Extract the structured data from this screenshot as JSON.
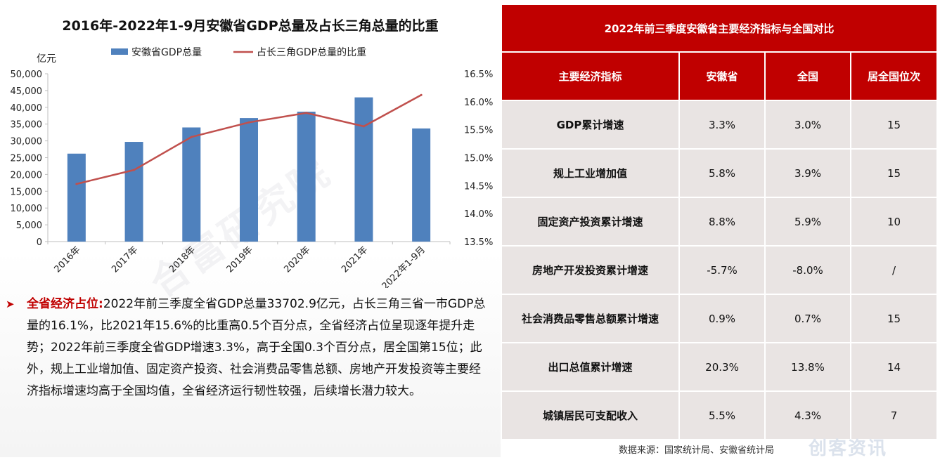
{
  "chart": {
    "title": "2016年-2022年1-9月安徽省GDP总量及占长三角总量的比重",
    "unit_label": "亿元",
    "legend_bar": "安徽省GDP总量",
    "legend_line": "占长三角GDP总量的比重"
  },
  "chart_data": {
    "type": "bar",
    "categories": [
      "2016年",
      "2017年",
      "2018年",
      "2019年",
      "2020年",
      "2021年",
      "2022年1-9月"
    ],
    "series": [
      {
        "name": "安徽省GDP总量",
        "type": "bar",
        "axis": "left",
        "values": [
          26200,
          29700,
          34000,
          36800,
          38700,
          42960,
          33702.9
        ]
      },
      {
        "name": "占长三角GDP总量的比重",
        "type": "line",
        "axis": "right",
        "values": [
          14.53,
          14.78,
          15.37,
          15.63,
          15.8,
          15.56,
          16.12
        ]
      }
    ],
    "ylabel": "亿元",
    "ylim": [
      0,
      50000
    ],
    "yticks": [
      "0",
      "5,000",
      "10,000",
      "15,000",
      "20,000",
      "25,000",
      "30,000",
      "35,000",
      "40,000",
      "45,000",
      "50,000"
    ],
    "y2lim": [
      13.5,
      16.5
    ],
    "y2ticks": [
      "13.5%",
      "14.0%",
      "14.5%",
      "15.0%",
      "15.5%",
      "16.0%",
      "16.5%"
    ],
    "legend_position": "top",
    "colors": {
      "bar": "#4f81bd",
      "line": "#c0504d"
    }
  },
  "bullet": {
    "heading": "全省经济占位:",
    "text": "2022年前三季度全省GDP总量33702.9亿元，占长三角三省一市GDP总量的16.1%，比2021年15.6%的比重高0.5个百分点，全省经济占位呈现逐年提升走势；2022年前三季度全省GDP增速3.3%，高于全国0.3个百分点，居全国第15位；此外，规上工业增加值、固定资产投资、社会消费品零售总额、房地产开发投资等主要经济指标增速均高于全国均值，全省经济运行韧性较强，后续增长潜力较大。"
  },
  "table": {
    "title": "2022年前三季度安徽省主要经济指标与全国对比",
    "headers": [
      "主要经济指标",
      "安徽省",
      "全国",
      "居全国位次"
    ],
    "rows": [
      [
        "GDP累计增速",
        "3.3%",
        "3.0%",
        "15"
      ],
      [
        "规上工业增加值",
        "5.8%",
        "3.9%",
        "15"
      ],
      [
        "固定资产投资累计增速",
        "8.8%",
        "5.9%",
        "10"
      ],
      [
        "房地产开发投资累计增速",
        "-5.7%",
        "-8.0%",
        "/"
      ],
      [
        "社会消费品零售总额累计增速",
        "0.9%",
        "0.7%",
        "15"
      ],
      [
        "出口总值累计增速",
        "20.3%",
        "13.8%",
        "14"
      ],
      [
        "城镇居民可支配收入",
        "5.5%",
        "4.3%",
        "7"
      ]
    ]
  },
  "source_note": "数据来源：国家统计局、安徽省统计局",
  "watermarks": {
    "diagonal": "合富研究院",
    "logo": "创客资讯"
  },
  "colors": {
    "accent_red": "#c00000",
    "table_cell_bg": "#e9e4e3"
  }
}
